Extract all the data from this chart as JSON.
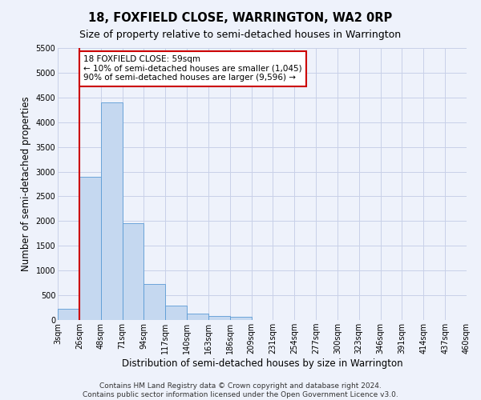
{
  "title": "18, FOXFIELD CLOSE, WARRINGTON, WA2 0RP",
  "subtitle": "Size of property relative to semi-detached houses in Warrington",
  "xlabel": "Distribution of semi-detached houses by size in Warrington",
  "ylabel": "Number of semi-detached properties",
  "bar_values": [
    220,
    2900,
    4400,
    1950,
    730,
    290,
    125,
    80,
    60,
    0,
    0,
    0,
    0,
    0,
    0,
    0,
    0,
    0,
    0
  ],
  "bar_labels": [
    "3sqm",
    "26sqm",
    "48sqm",
    "71sqm",
    "94sqm",
    "117sqm",
    "140sqm",
    "163sqm",
    "186sqm",
    "209sqm",
    "231sqm",
    "254sqm",
    "277sqm",
    "300sqm",
    "323sqm",
    "346sqm",
    "391sqm",
    "414sqm",
    "437sqm",
    "460sqm"
  ],
  "bar_color": "#c5d8f0",
  "bar_edge_color": "#5b9bd5",
  "background_color": "#eef2fb",
  "grid_color": "#c8d0e8",
  "red_line_x": 1,
  "marker_label": "18 FOXFIELD CLOSE: 59sqm",
  "annotation_line1": "← 10% of semi-detached houses are smaller (1,045)",
  "annotation_line2": "90% of semi-detached houses are larger (9,596) →",
  "red_line_color": "#cc0000",
  "box_edge_color": "#cc0000",
  "ylim": [
    0,
    5500
  ],
  "yticks": [
    0,
    500,
    1000,
    1500,
    2000,
    2500,
    3000,
    3500,
    4000,
    4500,
    5000,
    5500
  ],
  "footer_line1": "Contains HM Land Registry data © Crown copyright and database right 2024.",
  "footer_line2": "Contains public sector information licensed under the Open Government Licence v3.0.",
  "title_fontsize": 10.5,
  "subtitle_fontsize": 9,
  "axis_label_fontsize": 8.5,
  "tick_fontsize": 7,
  "footer_fontsize": 6.5,
  "annotation_fontsize": 7.5
}
